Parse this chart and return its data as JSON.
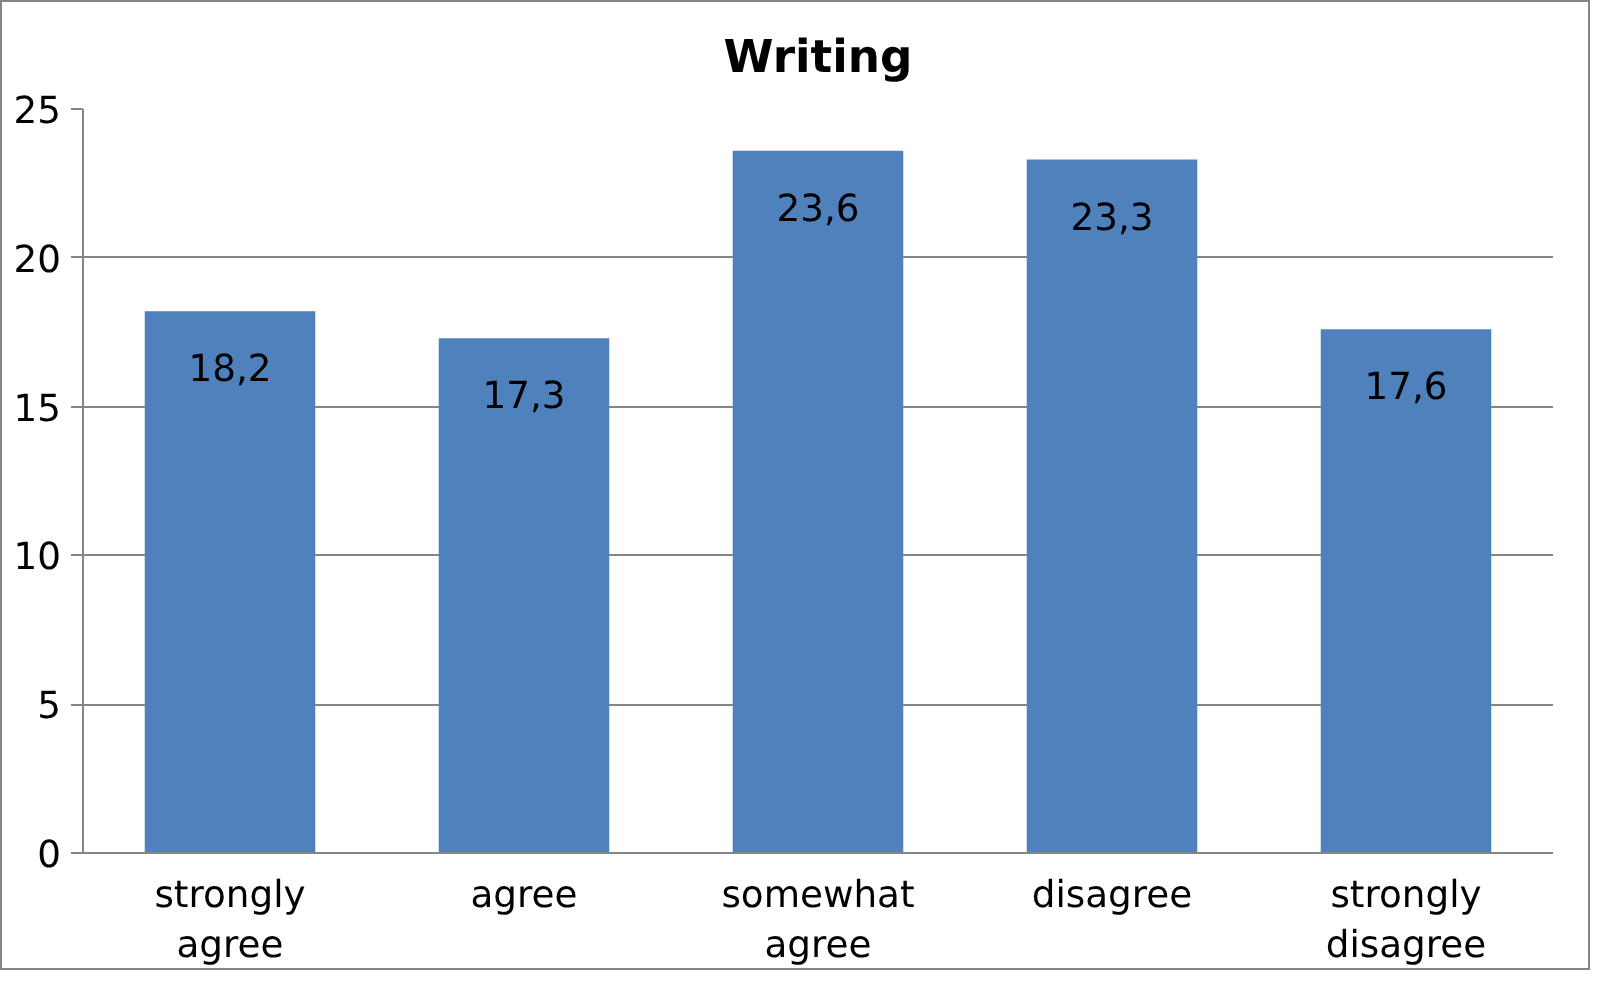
{
  "chart_data": {
    "type": "bar",
    "title": "Writing",
    "categories": [
      "strongly agree",
      "agree",
      "somewhat agree",
      "disagree",
      "strongly disagree"
    ],
    "values": [
      18.2,
      17.3,
      23.6,
      23.3,
      17.6
    ],
    "value_labels": [
      "18,2",
      "17,3",
      "23,6",
      "23,3",
      "17,6"
    ],
    "color": "#4f81bd",
    "ylim": [
      0,
      25
    ],
    "yticks": [
      0,
      5,
      10,
      15,
      20,
      25
    ],
    "grid": "y"
  }
}
